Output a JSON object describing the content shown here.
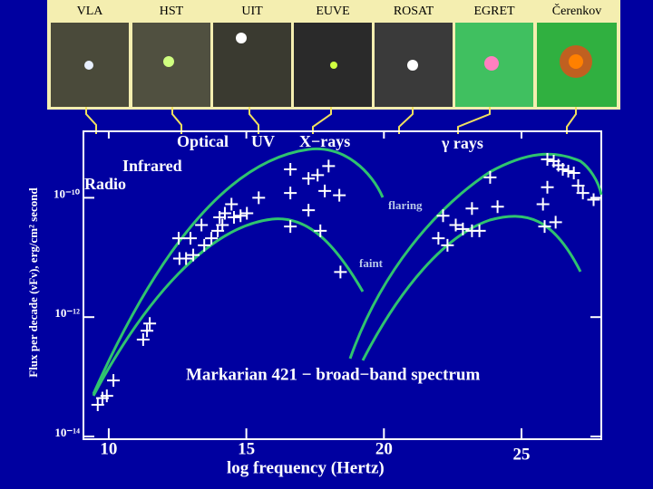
{
  "chart_data": {
    "type": "scatter",
    "instruments": [
      "VLA",
      "HST",
      "UIT",
      "EUVE",
      "ROSAT",
      "EGRET",
      "Čerenkov"
    ],
    "title": "Markarian 421 − broad−band spectrum",
    "xlabel": "log frequency (Hertz)",
    "ylabel": "Flux per decade (νFν), erg/cm² second",
    "annotations": [
      "Optical",
      "UV",
      "X−rays",
      "γ rays",
      "Infrared",
      "Radio",
      "flaring",
      "faint"
    ],
    "x": [
      9.6,
      9.77,
      9.93,
      10.17,
      11.25,
      11.39,
      11.49,
      12.57,
      12.81,
      13.07,
      12.54,
      12.97,
      13.37,
      13.47,
      13.73,
      13.96,
      14.03,
      14.13,
      14.22,
      14.46,
      14.55,
      14.79,
      15.02,
      15.45,
      16.6,
      17.26,
      17.59,
      17.99,
      16.6,
      17.85,
      18.38,
      17.26,
      16.6,
      17.69,
      18.42,
      23.86,
      25.94,
      26.17,
      26.34,
      26.5,
      26.7,
      26.9,
      27.06,
      27.23,
      27.62,
      25.94,
      25.78,
      25.84,
      26.24,
      24.13,
      23.2,
      22.15,
      22.61,
      22.87,
      23.2,
      23.47,
      21.98,
      22.31
    ],
    "values": [
      3.4e-14,
      4.4e-14,
      4.8e-14,
      8.7e-14,
      4.2e-13,
      5.9e-13,
      7.8e-13,
      9.6e-12,
      9.6e-12,
      1.1e-11,
      2.1e-11,
      2.1e-11,
      3.5e-11,
      1.6e-11,
      2.1e-11,
      2.8e-11,
      4.7e-11,
      3.5e-11,
      5.5e-11,
      7.8e-11,
      4.7e-11,
      5e-11,
      5.5e-11,
      1e-10,
      3e-10,
      2.1e-10,
      2.4e-10,
      3.4e-10,
      1.2e-10,
      1.3e-10,
      1.1e-10,
      6.2e-11,
      3.3e-11,
      2.8e-11,
      5.7e-12,
      2.2e-10,
      4.4e-10,
      4.1e-10,
      3.5e-10,
      3e-10,
      2.8e-10,
      2.6e-10,
      1.6e-10,
      1.2e-10,
      9.3e-11,
      1.5e-10,
      7.8e-11,
      3.3e-11,
      3.9e-11,
      7.1e-11,
      6.6e-11,
      5e-11,
      3.5e-11,
      3e-11,
      2.8e-11,
      2.8e-11,
      2.1e-11,
      1.6e-11
    ],
    "color": "#ffffff",
    "xlim": [
      9.08,
      27.9
    ],
    "xticks": [
      10,
      15,
      20,
      25
    ],
    "ylim": [
      9e-15,
      1.3e-09
    ],
    "ylog": true,
    "yticks": [
      {
        "value": 1e-10,
        "label": "10⁻¹⁰"
      },
      {
        "value": 1e-12,
        "label": "10⁻¹²"
      },
      {
        "value": 1e-14,
        "label": "10⁻¹⁴"
      }
    ]
  }
}
